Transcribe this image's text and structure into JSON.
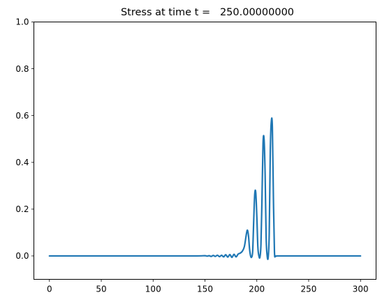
{
  "chart_data": {
    "type": "line",
    "title": "Stress at time t =   250.00000000",
    "xlabel": "",
    "ylabel": "",
    "xlim": [
      -15,
      315
    ],
    "ylim": [
      -0.1,
      1.0
    ],
    "x_ticks": [
      0,
      50,
      100,
      150,
      200,
      250,
      300
    ],
    "x_tick_labels": [
      "0",
      "50",
      "100",
      "150",
      "200",
      "250",
      "300"
    ],
    "y_ticks": [
      0.0,
      0.2,
      0.4,
      0.6,
      0.8,
      1.0
    ],
    "y_tick_labels": [
      "0.0",
      "0.2",
      "0.4",
      "0.6",
      "0.8",
      "1.0"
    ],
    "grid": false,
    "line_color": "#1f77b4",
    "series": [
      {
        "x": [
          0,
          100,
          140,
          150,
          152,
          154,
          156,
          158,
          160,
          162,
          164,
          166,
          168,
          170,
          172,
          174,
          176,
          178,
          180,
          182,
          184,
          186,
          188,
          190,
          191,
          192,
          193,
          194,
          195,
          196,
          197,
          198,
          199,
          200,
          201,
          202,
          203,
          204,
          205,
          206,
          207,
          208,
          209,
          210,
          211,
          212,
          213,
          214,
          215,
          216,
          217,
          218,
          220,
          230,
          300
        ],
        "y": [
          0,
          0,
          0,
          0.001,
          -0.001,
          0.001,
          -0.002,
          0.002,
          -0.002,
          0.003,
          -0.003,
          0.003,
          -0.004,
          0.005,
          -0.005,
          0.006,
          -0.006,
          0.007,
          -0.004,
          0.008,
          0.012,
          0.02,
          0.04,
          0.095,
          0.11,
          0.085,
          0.03,
          0.0,
          -0.005,
          0.02,
          0.15,
          0.265,
          0.27,
          0.17,
          0.04,
          0.0,
          -0.005,
          0.05,
          0.25,
          0.48,
          0.5,
          0.35,
          0.08,
          0.0,
          -0.005,
          0.1,
          0.45,
          0.575,
          0.55,
          0.25,
          0.02,
          0.0,
          0.0,
          0.0,
          0.0
        ]
      }
    ]
  }
}
